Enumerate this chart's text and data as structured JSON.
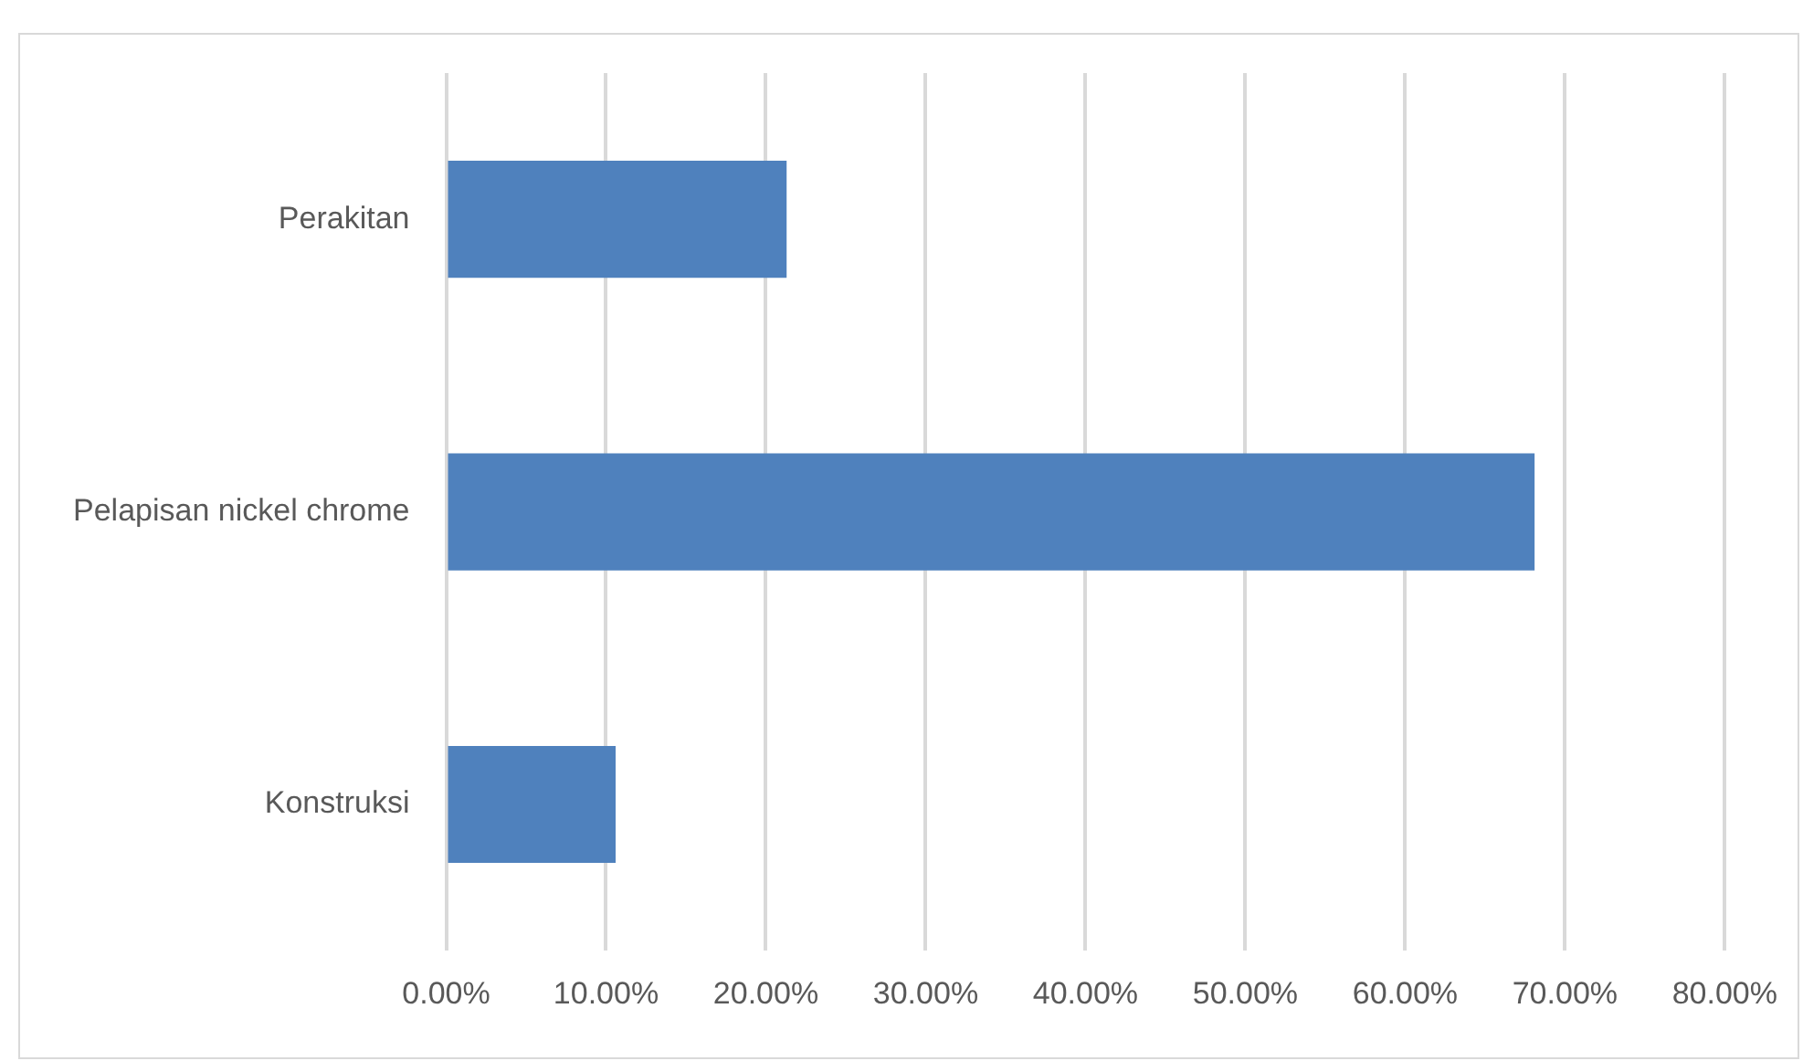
{
  "chart_data": {
    "type": "bar",
    "orientation": "horizontal",
    "categories": [
      "Perakitan",
      "Pelapisan nickel chrome",
      "Konstruksi"
    ],
    "values": [
      21.3,
      68.1,
      10.6
    ],
    "color": "#4f81bd",
    "xlim": [
      0,
      80
    ],
    "xticks": [
      {
        "value": 0,
        "label": "0.00%"
      },
      {
        "value": 10,
        "label": "10.00%"
      },
      {
        "value": 20,
        "label": "20.00%"
      },
      {
        "value": 30,
        "label": "30.00%"
      },
      {
        "value": 40,
        "label": "40.00%"
      },
      {
        "value": 50,
        "label": "50.00%"
      },
      {
        "value": 60,
        "label": "60.00%"
      },
      {
        "value": 70,
        "label": "70.00%"
      },
      {
        "value": 80,
        "label": "80.00%"
      }
    ],
    "grid": "x"
  }
}
